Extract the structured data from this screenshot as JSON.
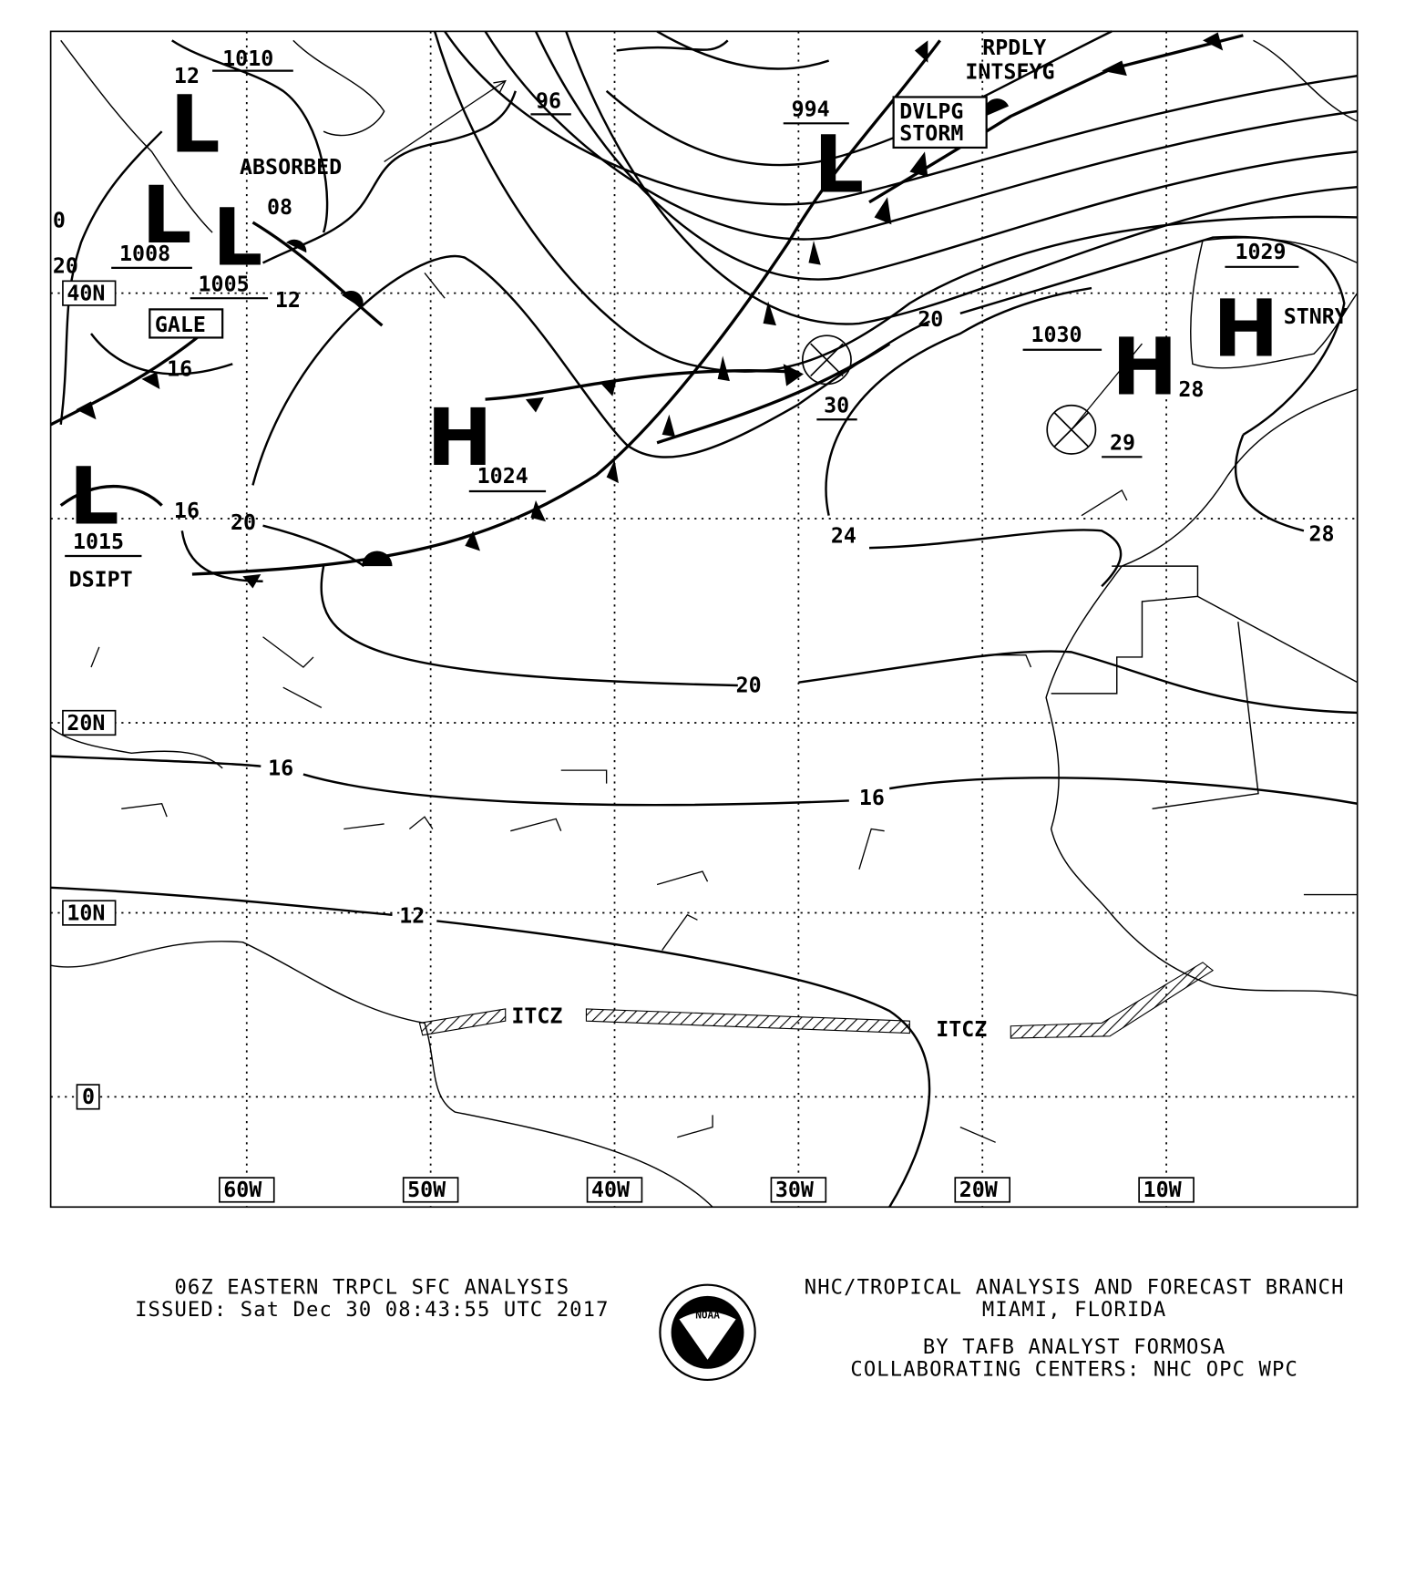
{
  "map": {
    "latitude_labels": [
      "40N",
      "20N",
      "10N",
      "0"
    ],
    "longitude_labels": [
      "60W",
      "50W",
      "40W",
      "30W",
      "20W",
      "10W"
    ],
    "pressure_centers": [
      {
        "type": "L",
        "pressure": "1010"
      },
      {
        "type": "L",
        "pressure": "1008"
      },
      {
        "type": "L",
        "pressure": "1005"
      },
      {
        "type": "L",
        "pressure": "994"
      },
      {
        "type": "L",
        "pressure": "1015"
      },
      {
        "type": "H",
        "pressure": "1024"
      },
      {
        "type": "H",
        "pressure": "1030"
      },
      {
        "type": "H",
        "pressure": "1029"
      }
    ],
    "isobar_labels": [
      "96",
      "12",
      "08",
      "12",
      "16",
      "16",
      "20",
      "20",
      "20",
      "24",
      "28",
      "28",
      "20",
      "16",
      "16",
      "12",
      "30",
      "29",
      "0",
      "20"
    ],
    "annotations": {
      "absorbed": "ABSORBED",
      "gale": "GALE",
      "dsipt": "DSIPT",
      "rpdly": "RPDLY",
      "intsfyg": "INTSFYG",
      "dvlpg": "DVLPG",
      "storm": "STORM",
      "stnry": "STNRY",
      "itcz": [
        "ITCZ",
        "ITCZ"
      ]
    }
  },
  "footer": {
    "title": "06Z EASTERN TRPCL SFC ANALYSIS",
    "issued": "ISSUED: Sat Dec 30 08:43:55 UTC 2017",
    "branch": "NHC/TROPICAL ANALYSIS AND FORECAST BRANCH",
    "location": "MIAMI,  FLORIDA",
    "analyst": "BY TAFB ANALYST  FORMOSA",
    "centers": "COLLABORATING CENTERS: NHC OPC WPC",
    "logo_text": "NOAA"
  }
}
